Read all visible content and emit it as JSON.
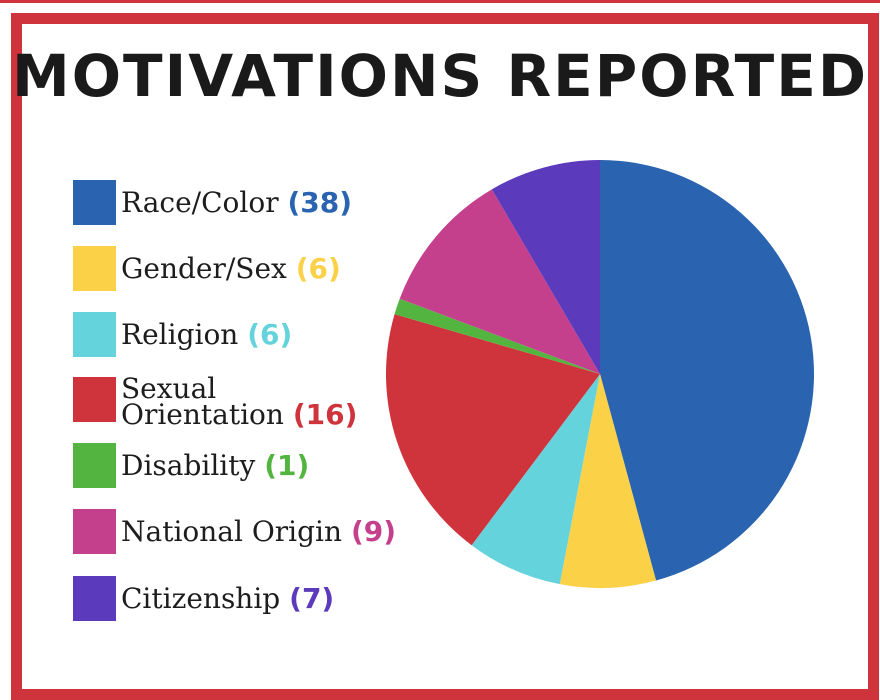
{
  "title": "MOTIVATIONS REPORTED",
  "chart_data": {
    "type": "pie",
    "title": "MOTIVATIONS REPORTED",
    "legend_position": "left",
    "slices": [
      {
        "label": "Race/Color",
        "value": 38,
        "color": "#2a63b0",
        "count_text": "(38)"
      },
      {
        "label": "Gender/Sex",
        "value": 6,
        "color": "#fbd148",
        "count_text": "(6)"
      },
      {
        "label": "Religion",
        "value": 6,
        "color": "#64d3dc",
        "count_text": "(6)"
      },
      {
        "label_line1": "Sexual",
        "label_line2": "Orientation",
        "label": "Sexual Orientation",
        "value": 16,
        "color": "#cf343c",
        "count_text": "(16)"
      },
      {
        "label": "Disability",
        "value": 1,
        "color": "#53b540",
        "count_text": "(1)"
      },
      {
        "label": "National Origin",
        "value": 9,
        "color": "#c4408c",
        "count_text": "(9)"
      },
      {
        "label": "Citizenship",
        "value": 7,
        "color": "#5b3abc",
        "count_text": "(7)"
      }
    ]
  }
}
